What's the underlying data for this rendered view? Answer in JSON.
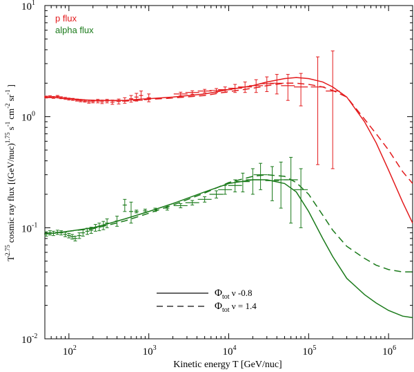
{
  "chart_data": {
    "type": "line",
    "xscale": "log",
    "yscale": "log",
    "xlim": [
      50,
      2000000
    ],
    "ylim": [
      0.01,
      10
    ],
    "xlabel": "Kinetic energy T [GeV/nuc]",
    "ylabel": {
      "prefix": "T",
      "prefix_exp": "2.75",
      "main": "cosmic ray flux [(GeV/nuc)",
      "exp1": "1.75",
      "s": "s",
      "s_exp": "-1",
      "cm": "cm",
      "cm_exp": "-2",
      "sr": "sr",
      "sr_exp": "-1",
      "close": "]"
    },
    "xticks": [
      {
        "base": "10",
        "exp": "2",
        "value": 100
      },
      {
        "base": "10",
        "exp": "3",
        "value": 1000
      },
      {
        "base": "10",
        "exp": "4",
        "value": 10000
      },
      {
        "base": "10",
        "exp": "5",
        "value": 100000
      },
      {
        "base": "10",
        "exp": "6",
        "value": 1000000
      }
    ],
    "yticks": [
      {
        "base": "10",
        "exp": "1",
        "value": 10
      },
      {
        "base": "10",
        "exp": "0",
        "value": 1
      },
      {
        "base": "10",
        "exp": "-1",
        "value": 0.1
      },
      {
        "base": "10",
        "exp": "-2",
        "value": 0.01
      }
    ],
    "colors": {
      "proton": "#e31a1c",
      "alpha": "#1a7a1a",
      "legend_line": "#333333"
    },
    "legend_top": [
      {
        "label": "p flux",
        "color": "#e31a1c"
      },
      {
        "label": "alpha flux",
        "color": "#1a7a1a"
      }
    ],
    "legend_bottom": [
      {
        "label_main": "Φ",
        "label_sub": "tot",
        "label_rest": " ν -0.8",
        "style": "solid"
      },
      {
        "label_main": "Φ",
        "label_sub": "tot",
        "label_rest": " ν = 1.4",
        "style": "dashed"
      }
    ],
    "series": [
      {
        "name": "proton model ν=-0.8",
        "style": "solid",
        "color": "#e31a1c",
        "x": [
          50,
          70,
          100,
          150,
          200,
          300,
          500,
          700,
          1000,
          2000,
          5000,
          10000,
          20000,
          30000,
          50000,
          70000,
          100000,
          150000,
          200000,
          300000,
          500000,
          700000,
          1000000,
          1500000,
          2000000
        ],
        "y": [
          1.5,
          1.48,
          1.45,
          1.42,
          1.4,
          1.4,
          1.4,
          1.43,
          1.45,
          1.5,
          1.6,
          1.75,
          1.9,
          2.05,
          2.2,
          2.25,
          2.2,
          2.05,
          1.85,
          1.5,
          0.9,
          0.58,
          0.33,
          0.17,
          0.11
        ]
      },
      {
        "name": "proton model ν=1.4",
        "style": "dashed",
        "color": "#e31a1c",
        "x": [
          50,
          70,
          100,
          150,
          200,
          300,
          500,
          700,
          1000,
          2000,
          5000,
          10000,
          20000,
          30000,
          50000,
          70000,
          100000,
          150000,
          200000,
          300000,
          500000,
          700000,
          1000000,
          1500000,
          2000000
        ],
        "y": [
          1.5,
          1.48,
          1.45,
          1.42,
          1.4,
          1.4,
          1.38,
          1.4,
          1.43,
          1.47,
          1.55,
          1.68,
          1.8,
          1.9,
          2.0,
          2.0,
          1.95,
          1.85,
          1.72,
          1.5,
          0.95,
          0.7,
          0.5,
          0.32,
          0.25
        ]
      },
      {
        "name": "alpha model ν=-0.8",
        "style": "solid",
        "color": "#1a7a1a",
        "x": [
          50,
          70,
          100,
          150,
          200,
          300,
          500,
          1000,
          2000,
          5000,
          10000,
          20000,
          30000,
          50000,
          70000,
          100000,
          150000,
          200000,
          300000,
          500000,
          700000,
          1000000,
          1500000,
          2000000
        ],
        "y": [
          0.088,
          0.09,
          0.093,
          0.097,
          0.1,
          0.108,
          0.12,
          0.14,
          0.165,
          0.21,
          0.25,
          0.27,
          0.27,
          0.25,
          0.21,
          0.14,
          0.08,
          0.055,
          0.035,
          0.025,
          0.021,
          0.018,
          0.016,
          0.0155
        ]
      },
      {
        "name": "alpha model ν=1.4",
        "style": "dashed",
        "color": "#1a7a1a",
        "x": [
          50,
          70,
          100,
          150,
          200,
          300,
          500,
          1000,
          2000,
          5000,
          10000,
          20000,
          30000,
          50000,
          70000,
          100000,
          150000,
          200000,
          300000,
          500000,
          700000,
          1000000,
          1500000,
          2000000
        ],
        "y": [
          0.088,
          0.09,
          0.093,
          0.096,
          0.098,
          0.105,
          0.115,
          0.135,
          0.16,
          0.205,
          0.255,
          0.29,
          0.3,
          0.29,
          0.255,
          0.2,
          0.13,
          0.095,
          0.068,
          0.053,
          0.046,
          0.042,
          0.04,
          0.04
        ]
      },
      {
        "name": "proton data",
        "style": "points",
        "color": "#e31a1c",
        "points": [
          [
            52,
            1.5,
            0.03
          ],
          [
            58,
            1.51,
            0.03
          ],
          [
            64,
            1.49,
            0.03
          ],
          [
            72,
            1.52,
            0.03
          ],
          [
            80,
            1.48,
            0.03
          ],
          [
            90,
            1.46,
            0.03
          ],
          [
            100,
            1.44,
            0.03
          ],
          [
            112,
            1.43,
            0.03
          ],
          [
            126,
            1.41,
            0.03
          ],
          [
            140,
            1.39,
            0.03
          ],
          [
            158,
            1.38,
            0.03
          ],
          [
            178,
            1.36,
            0.04
          ],
          [
            200,
            1.37,
            0.04
          ],
          [
            230,
            1.38,
            0.05
          ],
          [
            260,
            1.36,
            0.05
          ],
          [
            300,
            1.38,
            0.05
          ],
          [
            350,
            1.35,
            0.06
          ],
          [
            420,
            1.37,
            0.07
          ],
          [
            500,
            1.4,
            0.08
          ],
          [
            600,
            1.45,
            0.1
          ],
          [
            700,
            1.5,
            0.12
          ],
          [
            800,
            1.55,
            0.15
          ],
          [
            1000,
            1.48,
            0.12
          ],
          [
            2500,
            1.6,
            0.06
          ],
          [
            3500,
            1.65,
            0.06
          ],
          [
            5000,
            1.7,
            0.06
          ],
          [
            7000,
            1.72,
            0.07
          ],
          [
            9000,
            1.75,
            0.1
          ],
          [
            12000,
            1.8,
            0.15
          ],
          [
            16000,
            1.85,
            0.2
          ],
          [
            22000,
            1.9,
            0.25
          ],
          [
            30000,
            1.98,
            0.3
          ],
          [
            40000,
            2.0,
            0.4
          ],
          [
            55000,
            1.9,
            0.5
          ],
          [
            80000,
            1.85,
            0.6
          ],
          [
            130000,
            1.85,
            1.6
          ],
          [
            200000,
            1.7,
            2.2
          ]
        ]
      },
      {
        "name": "alpha data",
        "style": "points",
        "color": "#1a7a1a",
        "points": [
          [
            52,
            0.088,
            0.004
          ],
          [
            58,
            0.09,
            0.004
          ],
          [
            64,
            0.089,
            0.004
          ],
          [
            72,
            0.091,
            0.004
          ],
          [
            80,
            0.09,
            0.004
          ],
          [
            90,
            0.087,
            0.004
          ],
          [
            100,
            0.085,
            0.004
          ],
          [
            110,
            0.083,
            0.004
          ],
          [
            120,
            0.08,
            0.004
          ],
          [
            135,
            0.085,
            0.005
          ],
          [
            150,
            0.09,
            0.006
          ],
          [
            170,
            0.093,
            0.006
          ],
          [
            190,
            0.095,
            0.006
          ],
          [
            215,
            0.1,
            0.007
          ],
          [
            240,
            0.102,
            0.008
          ],
          [
            270,
            0.105,
            0.009
          ],
          [
            300,
            0.11,
            0.01
          ],
          [
            400,
            0.115,
            0.012
          ],
          [
            500,
            0.16,
            0.02
          ],
          [
            600,
            0.14,
            0.03
          ],
          [
            700,
            0.14,
            0.004
          ],
          [
            900,
            0.142,
            0.005
          ],
          [
            1200,
            0.145,
            0.005
          ],
          [
            1700,
            0.15,
            0.006
          ],
          [
            2500,
            0.158,
            0.007
          ],
          [
            3500,
            0.168,
            0.008
          ],
          [
            5000,
            0.18,
            0.01
          ],
          [
            7000,
            0.2,
            0.015
          ],
          [
            9000,
            0.22,
            0.02
          ],
          [
            12000,
            0.24,
            0.03
          ],
          [
            15000,
            0.26,
            0.05
          ],
          [
            20000,
            0.27,
            0.07
          ],
          [
            25000,
            0.3,
            0.08
          ],
          [
            35000,
            0.265,
            0.09
          ],
          [
            45000,
            0.27,
            0.12
          ],
          [
            60000,
            0.27,
            0.16
          ],
          [
            80000,
            0.22,
            0.12
          ]
        ]
      }
    ]
  }
}
